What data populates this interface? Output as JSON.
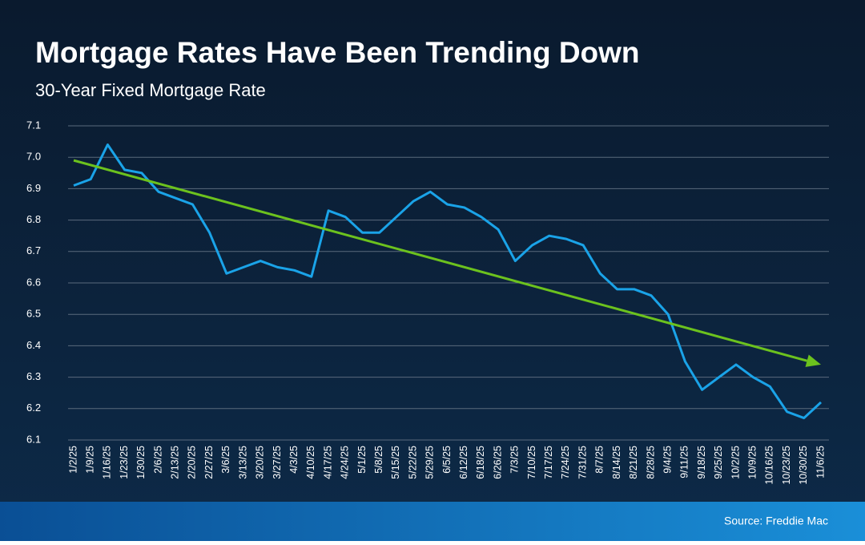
{
  "chart_data": {
    "type": "line",
    "title": "Mortgage Rates Have Been Trending Down",
    "subtitle": "30-Year Fixed Mortgage Rate",
    "source": "Source: Freddie Mac",
    "categories": [
      "1/2/25",
      "1/9/25",
      "1/16/25",
      "1/23/25",
      "1/30/25",
      "2/6/25",
      "2/13/25",
      "2/20/25",
      "2/27/25",
      "3/6/25",
      "3/13/25",
      "3/20/25",
      "3/27/25",
      "4/3/25",
      "4/10/25",
      "4/17/25",
      "4/24/25",
      "5/1/25",
      "5/8/25",
      "5/15/25",
      "5/22/25",
      "5/29/25",
      "6/5/25",
      "6/12/25",
      "6/18/25",
      "6/26/25",
      "7/3/25",
      "7/10/25",
      "7/17/25",
      "7/24/25",
      "7/31/25",
      "8/7/25",
      "8/14/25",
      "8/21/25",
      "8/28/25",
      "9/4/25",
      "9/11/25",
      "9/18/25",
      "9/25/25",
      "10/2/25",
      "10/9/25",
      "10/16/25",
      "10/23/25",
      "10/30/25",
      "11/6/25"
    ],
    "values": [
      6.91,
      6.93,
      7.04,
      6.96,
      6.95,
      6.89,
      6.87,
      6.85,
      6.76,
      6.63,
      6.65,
      6.67,
      6.65,
      6.64,
      6.62,
      6.83,
      6.81,
      6.76,
      6.76,
      6.81,
      6.86,
      6.89,
      6.85,
      6.84,
      6.81,
      6.77,
      6.67,
      6.72,
      6.75,
      6.74,
      6.72,
      6.63,
      6.58,
      6.58,
      6.56,
      6.5,
      6.35,
      6.26,
      6.3,
      6.34,
      6.3,
      6.27,
      6.19,
      6.17,
      6.22
    ],
    "color": "#1aa3e8",
    "trend": {
      "start": 6.99,
      "end": 6.34,
      "color": "#6cc21e"
    },
    "ylim": [
      6.1,
      7.1
    ],
    "yticks": [
      6.1,
      6.2,
      6.3,
      6.4,
      6.5,
      6.6,
      6.7,
      6.8,
      6.9,
      {
        "value": 7,
        "label": "7.0"
      },
      7.1
    ],
    "grid": true
  }
}
